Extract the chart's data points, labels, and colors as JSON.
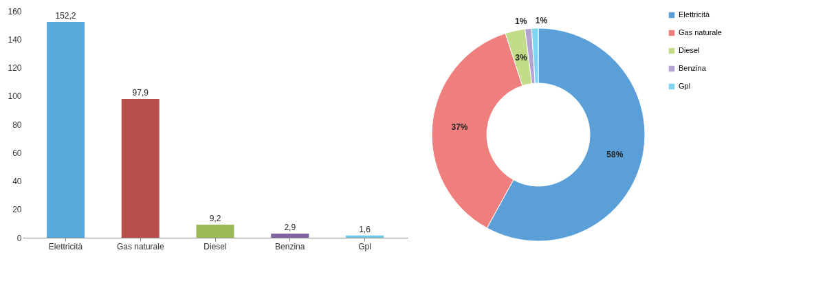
{
  "chart_data": [
    {
      "type": "bar",
      "categories": [
        "Elettricità",
        "Gas naturale",
        "Diesel",
        "Benzina",
        "Gpl"
      ],
      "values": [
        152.2,
        97.9,
        9.2,
        2.9,
        1.6
      ],
      "colors": [
        "#5aa9dc",
        "#b9504c",
        "#9bbb59",
        "#8064a2",
        "#6fc8e8"
      ],
      "value_labels": [
        "152,2",
        "97,9",
        "9,2",
        "2,9",
        "1,6"
      ],
      "ylim": [
        0,
        160
      ],
      "yticks": [
        0,
        20,
        40,
        60,
        80,
        100,
        120,
        140,
        160
      ],
      "grid": false,
      "legend": false
    },
    {
      "type": "donut",
      "categories": [
        "Elettricità",
        "Gas naturale",
        "Diesel",
        "Benzina",
        "Gpl"
      ],
      "values": [
        58,
        37,
        3,
        1,
        1
      ],
      "colors": [
        "#5b9fd8",
        "#ee7f7c",
        "#c2dc8a",
        "#b3a2d2",
        "#80d4f2"
      ],
      "value_labels": [
        "58%",
        "37%",
        "3%",
        "1%",
        "1%"
      ],
      "legend": "right"
    }
  ]
}
